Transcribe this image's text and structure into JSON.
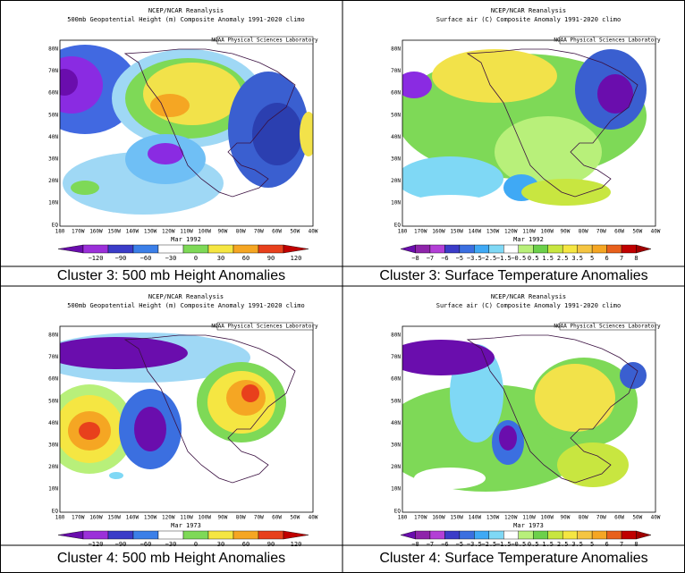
{
  "panels": [
    {
      "title": "NCEP/NCAR Reanalysis",
      "subtitle": "500mb Geopotential Height (m) Composite Anomaly 1991-2020 climo",
      "lab": "NOAA Physical Sciences Laboratory",
      "lat_labels": [
        "80N",
        "70N",
        "60N",
        "50N",
        "40N",
        "30N",
        "20N",
        "10N",
        "EQ"
      ],
      "lon_labels": [
        "180",
        "170W",
        "160W",
        "150W",
        "140W",
        "130W",
        "120W",
        "110W",
        "100W",
        "90W",
        "80W",
        "70W",
        "60W",
        "50W",
        "40W"
      ],
      "date": "Mar 1992",
      "colorbar_labels": [
        "−120",
        "−90",
        "−60",
        "−30",
        "0",
        "30",
        "60",
        "90",
        "120"
      ],
      "caption": "Cluster 3: 500 mb Height Anomalies"
    },
    {
      "title": "NCEP/NCAR Reanalysis",
      "subtitle": "Surface air (C) Composite Anomaly 1991-2020 climo",
      "lab": "NOAA Physical Sciences Laboratory",
      "lat_labels": [
        "80N",
        "70N",
        "60N",
        "50N",
        "40N",
        "30N",
        "20N",
        "10N",
        "EQ"
      ],
      "lon_labels": [
        "180",
        "170W",
        "160W",
        "150W",
        "140W",
        "130W",
        "120W",
        "110W",
        "100W",
        "90W",
        "80W",
        "70W",
        "60W",
        "50W",
        "40W"
      ],
      "date": "Mar 1992",
      "colorbar_labels": [
        "−8",
        "−7",
        "−6",
        "−5",
        "−3.5",
        "−2.5",
        "−1.5",
        "−0.5",
        "0.5",
        "1.5",
        "2.5",
        "3.5",
        "5",
        "6",
        "7",
        "8"
      ],
      "caption": "Cluster 3: Surface Temperature Anomalies"
    },
    {
      "title": "NCEP/NCAR Reanalysis",
      "subtitle": "500mb Geopotential Height (m) Composite Anomaly 1991-2020 climo",
      "lab": "NOAA Physical Sciences Laboratory",
      "lat_labels": [
        "80N",
        "70N",
        "60N",
        "50N",
        "40N",
        "30N",
        "20N",
        "10N",
        "EQ"
      ],
      "lon_labels": [
        "180",
        "170W",
        "160W",
        "150W",
        "140W",
        "130W",
        "120W",
        "110W",
        "100W",
        "90W",
        "80W",
        "70W",
        "60W",
        "50W",
        "40W"
      ],
      "date": "Mar 1973",
      "colorbar_labels": [
        "−120",
        "−90",
        "−60",
        "−30",
        "0",
        "30",
        "60",
        "90",
        "120"
      ],
      "caption": "Cluster 4: 500 mb Height Anomalies"
    },
    {
      "title": "NCEP/NCAR Reanalysis",
      "subtitle": "Surface air (C) Composite Anomaly 1991-2020 climo",
      "lab": "NOAA Physical Sciences Laboratory",
      "lat_labels": [
        "80N",
        "70N",
        "60N",
        "50N",
        "40N",
        "30N",
        "20N",
        "10N",
        "EQ"
      ],
      "lon_labels": [
        "180",
        "170W",
        "160W",
        "150W",
        "140W",
        "130W",
        "120W",
        "110W",
        "100W",
        "90W",
        "80W",
        "70W",
        "60W",
        "50W",
        "40W"
      ],
      "date": "Mar 1973",
      "colorbar_labels": [
        "−8",
        "−7",
        "−6",
        "−5",
        "−3.5",
        "−2.5",
        "−1.5",
        "−0.5",
        "0.5",
        "1.5",
        "2.5",
        "3.5",
        "5",
        "6",
        "7",
        "8"
      ],
      "caption": "Cluster 4: Surface Temperature Anomalies"
    }
  ]
}
